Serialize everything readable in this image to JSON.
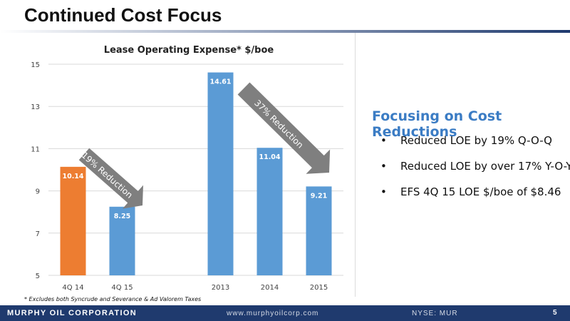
{
  "slide": {
    "title": "Continued Cost Focus",
    "footnote": "* Excludes both Syncrude and Severance & Ad Valorem Taxes"
  },
  "sidebar": {
    "heading": "Focusing on Cost Reductions",
    "bullets": [
      "Reduced LOE by 19% Q-O-Q",
      "Reduced LOE by over 17% Y-O-Y",
      "EFS 4Q 15 LOE $/boe of $8.46"
    ]
  },
  "footer": {
    "company": "MURPHY OIL CORPORATION",
    "url": "www.murphyoilcorp.com",
    "ticker": "NYSE: MUR",
    "page": "5"
  },
  "chart_data": {
    "type": "bar",
    "title": "Lease Operating Expense*   $/boe",
    "xlabel": "",
    "ylabel": "",
    "categories": [
      "4Q 14",
      "4Q 15",
      "",
      "2013",
      "2014",
      "2015"
    ],
    "values": [
      10.14,
      8.25,
      null,
      14.61,
      11.04,
      9.21
    ],
    "value_labels": [
      "10.14",
      "8.25",
      "",
      "14.61",
      "11.04",
      "9.21"
    ],
    "bar_colors": [
      "#ed7d31",
      "#5b9bd5",
      "",
      "#5b9bd5",
      "#5b9bd5",
      "#5b9bd5"
    ],
    "ylim": [
      5,
      15
    ],
    "yticks": [
      5,
      7,
      9,
      11,
      13,
      15
    ],
    "grid": true,
    "legend": "none",
    "annotations": [
      {
        "text": "19% Reduction",
        "from": "4Q 14",
        "to": "4Q 15",
        "color": "#7f7f7f"
      },
      {
        "text": "37% Reduction",
        "from": "2013",
        "to": "2015",
        "color": "#7f7f7f"
      }
    ]
  }
}
